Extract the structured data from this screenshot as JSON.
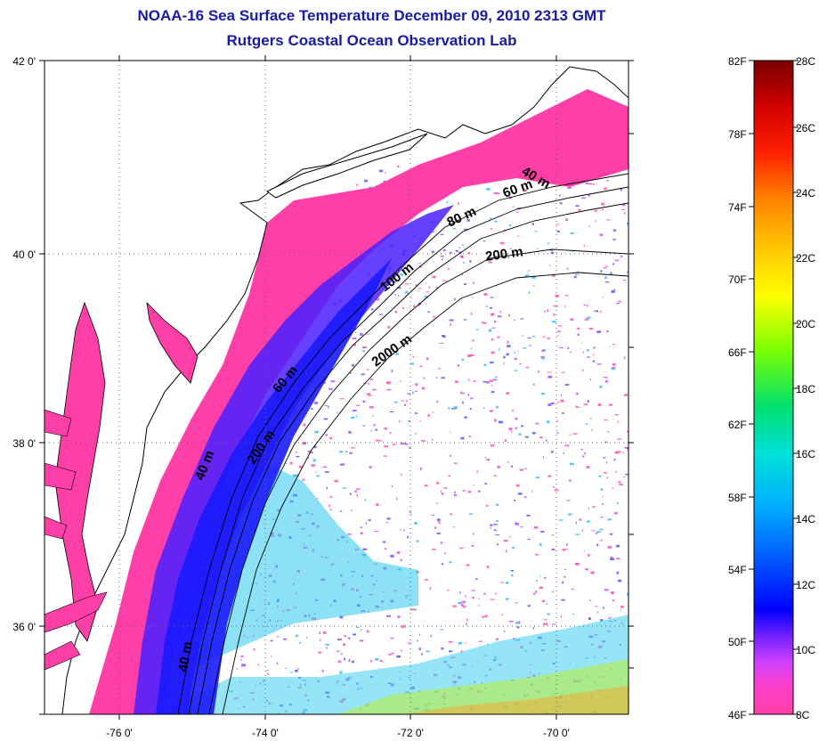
{
  "title": {
    "line1": "NOAA-16 Sea Surface Temperature December 09, 2010 2313 GMT",
    "line2": "Rutgers Coastal Ocean Observation Lab"
  },
  "map": {
    "lon_ticks": [
      "-76 0'",
      "-74 0'",
      "-72 0'",
      "-70 0'"
    ],
    "lat_ticks": [
      "42 0'",
      "40 0'",
      "38 0'",
      "36 0'"
    ],
    "lon_range": [
      -77,
      -69
    ],
    "lat_range": [
      35,
      42
    ],
    "land_color": "#ffffff",
    "coast_color": "#000000",
    "contour_labels": [
      "40 m",
      "60 m",
      "80 m",
      "200 m",
      "100 m",
      "2000 m",
      "60 m",
      "200 m",
      "40 m",
      "40 m"
    ]
  },
  "colorbar": {
    "f_labels": [
      "82F",
      "78F",
      "74F",
      "70F",
      "66F",
      "62F",
      "58F",
      "54F",
      "50F",
      "46F"
    ],
    "c_labels": [
      "28C",
      "26C",
      "24C",
      "22C",
      "20C",
      "18C",
      "16C",
      "14C",
      "12C",
      "10C",
      "8C"
    ],
    "colors": [
      "#ff3fa8",
      "#e040ff",
      "#8020ff",
      "#0000ff",
      "#0060ff",
      "#00b0ff",
      "#00e0d0",
      "#00e060",
      "#80ff00",
      "#ffff00",
      "#ffc000",
      "#ff8000",
      "#ff3000",
      "#e00000",
      "#800000"
    ]
  }
}
